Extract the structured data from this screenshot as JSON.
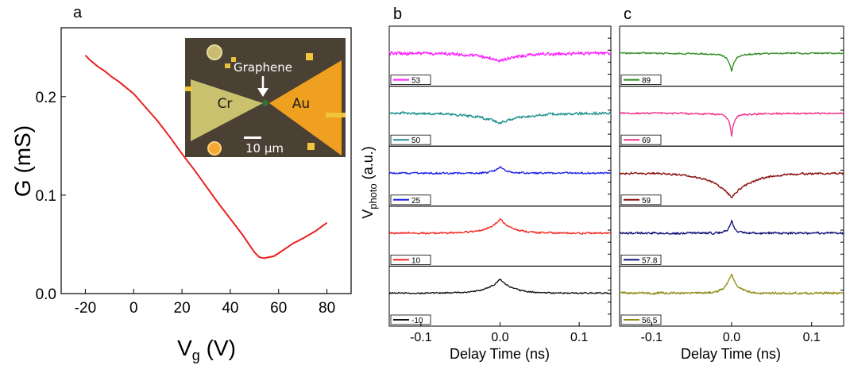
{
  "colors": {
    "conductance_curve": "#e8211e",
    "inset_background": "#4a4034",
    "cr_electrode": "#c9c16e",
    "au_electrode": "#f0a020"
  },
  "chart_data": [
    {
      "panel_label": "a",
      "type": "line",
      "xlabel_main": "V",
      "xlabel_sub": "g",
      "xlabel_unit": " (V)",
      "ylabel": "G (mS)",
      "xlim": [
        -30,
        90
      ],
      "ylim": [
        0.0,
        0.27
      ],
      "xticks": [
        -20,
        0,
        20,
        40,
        60,
        80
      ],
      "yticks": [
        0.0,
        0.1,
        0.2
      ],
      "ytick_labels": [
        "0.0",
        "0.1",
        "0.2"
      ],
      "series": [
        {
          "color": "#e8211e",
          "x": [
            -20,
            -18,
            -15,
            -12,
            -9,
            -6,
            -3,
            0,
            5,
            10,
            15,
            20,
            25,
            30,
            35,
            40,
            45,
            48,
            50,
            52,
            54,
            56,
            58,
            60,
            63,
            66,
            70,
            75,
            80
          ],
          "y": [
            0.242,
            0.237,
            0.231,
            0.226,
            0.22,
            0.215,
            0.209,
            0.203,
            0.189,
            0.175,
            0.159,
            0.142,
            0.126,
            0.109,
            0.092,
            0.076,
            0.06,
            0.049,
            0.042,
            0.037,
            0.036,
            0.037,
            0.038,
            0.041,
            0.046,
            0.051,
            0.056,
            0.063,
            0.072
          ]
        }
      ],
      "inset": {
        "label_graphene": "Graphene",
        "label_cr": "Cr",
        "label_au": "Au",
        "scale_bar": "10 μm"
      }
    },
    {
      "panel_label": "b",
      "type": "line",
      "xlabel": "Delay Time (ns)",
      "ylabel_main": "V",
      "ylabel_sub": "photo",
      "ylabel_unit": " (a.u.)",
      "xlim": [
        -0.14,
        0.14
      ],
      "xticks": [
        -0.1,
        0.0,
        0.1
      ],
      "xtick_labels": [
        "-0.1",
        "0.0",
        "0.1"
      ],
      "series": [
        {
          "name": "53",
          "color": "#ff19ff",
          "shape": "dip",
          "depth": 0.26,
          "width": 0.028,
          "noise": 0.07
        },
        {
          "name": "50",
          "color": "#1c8f8c",
          "shape": "dip",
          "depth": 0.33,
          "width": 0.03,
          "noise": 0.06
        },
        {
          "name": "25",
          "color": "#1f1fe8",
          "shape": "peak",
          "depth": 0.22,
          "width": 0.008,
          "noise": 0.04
        },
        {
          "name": "10",
          "color": "#f2231c",
          "shape": "peak",
          "depth": 0.48,
          "width": 0.015,
          "noise": 0.04
        },
        {
          "name": "-10",
          "color": "#111111",
          "shape": "peak",
          "depth": 0.46,
          "width": 0.016,
          "noise": 0.03
        }
      ]
    },
    {
      "panel_label": "c",
      "type": "line",
      "xlabel": "Delay Time (ns)",
      "xlim": [
        -0.14,
        0.14
      ],
      "xticks": [
        -0.1,
        0.0,
        0.1
      ],
      "xtick_labels": [
        "-0.1",
        "0.0",
        "0.1"
      ],
      "series": [
        {
          "name": "89",
          "color": "#2c8a1e",
          "shape": "sharpdip",
          "depth": 0.52,
          "width": 0.004,
          "noise": 0.035
        },
        {
          "name": "69",
          "color": "#f02b8a",
          "shape": "sharpdip",
          "depth": 0.68,
          "width": 0.003,
          "noise": 0.04
        },
        {
          "name": "59",
          "color": "#8a0e0e",
          "shape": "dip",
          "depth": 0.8,
          "width": 0.025,
          "noise": 0.05
        },
        {
          "name": "57.8",
          "color": "#10107a",
          "shape": "peak",
          "depth": 0.44,
          "width": 0.004,
          "noise": 0.05
        },
        {
          "name": "56.5",
          "color": "#8f8a16",
          "shape": "peak",
          "depth": 0.62,
          "width": 0.008,
          "noise": 0.05
        }
      ]
    }
  ]
}
